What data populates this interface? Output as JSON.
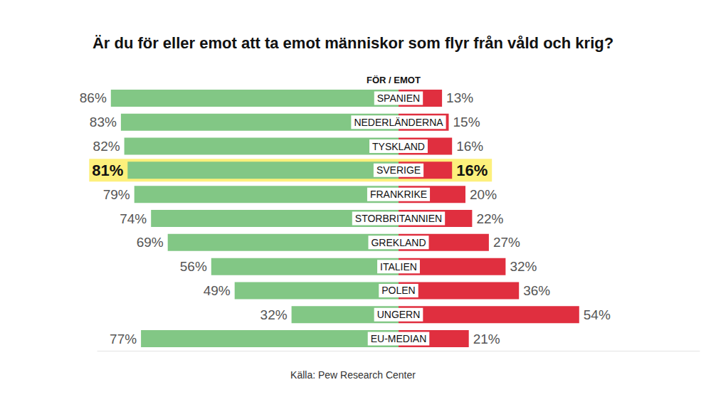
{
  "chart_data": {
    "type": "bar",
    "title": "Är du för eller emot att ta emot människor som flyr från våld och krig?",
    "header": "FÖR / EMOT",
    "source": "Källa: Pew Research Center",
    "orientation": "horizontal",
    "categories": [
      "SPANIEN",
      "NEDERLÄNDERNA",
      "TYSKLAND",
      "SVERIGE",
      "FRANKRIKE",
      "STORBRITANNIEN",
      "GREKLAND",
      "ITALIEN",
      "POLEN",
      "UNGERN",
      "EU-MEDIAN"
    ],
    "highlight": "SVERIGE",
    "series": [
      {
        "name": "FÖR",
        "color": "#82c785",
        "values": [
          86,
          83,
          82,
          81,
          79,
          74,
          69,
          56,
          49,
          32,
          77
        ],
        "value_labels": [
          "86%",
          "83%",
          "82%",
          "81%",
          "79%",
          "74%",
          "69%",
          "56%",
          "49%",
          "32%",
          "77%"
        ]
      },
      {
        "name": "EMOT",
        "color": "#e02f3f",
        "values": [
          13,
          15,
          16,
          16,
          20,
          22,
          27,
          32,
          36,
          54,
          21
        ],
        "value_labels": [
          "13%",
          "15%",
          "16%",
          "16%",
          "20%",
          "22%",
          "27%",
          "32%",
          "36%",
          "54%",
          "21%"
        ]
      }
    ],
    "xlim": [
      0,
      90
    ],
    "data_labels": true,
    "tick_labels": false,
    "grid": false
  }
}
